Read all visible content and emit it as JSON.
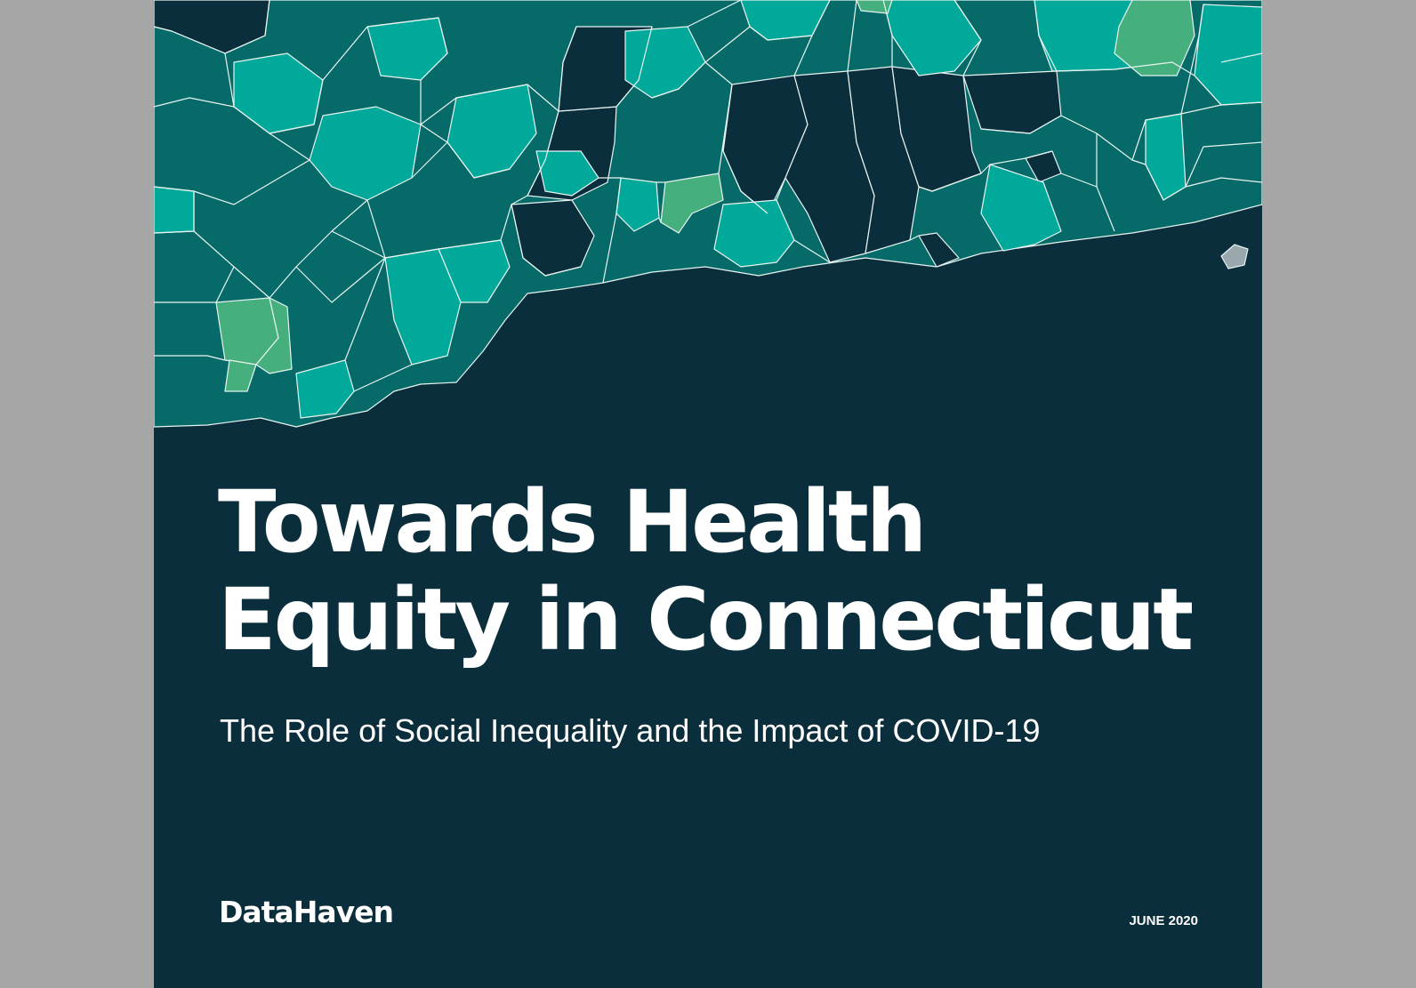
{
  "cover": {
    "title_line1": "Towards Health",
    "title_line2": "Equity in Connecticut",
    "subtitle": "The Role of Social Inequality and the Impact of COVID-19",
    "publisher": "DataHaven",
    "date": "JUNE 2020"
  },
  "colors": {
    "background": "#0b2e3d",
    "viewer_gray": "#a6a6a6",
    "map_dark": "#0b2e3d",
    "map_teal_dark": "#066b68",
    "map_teal": "#00a99a",
    "map_green": "#45b07e",
    "text": "#ffffff"
  }
}
